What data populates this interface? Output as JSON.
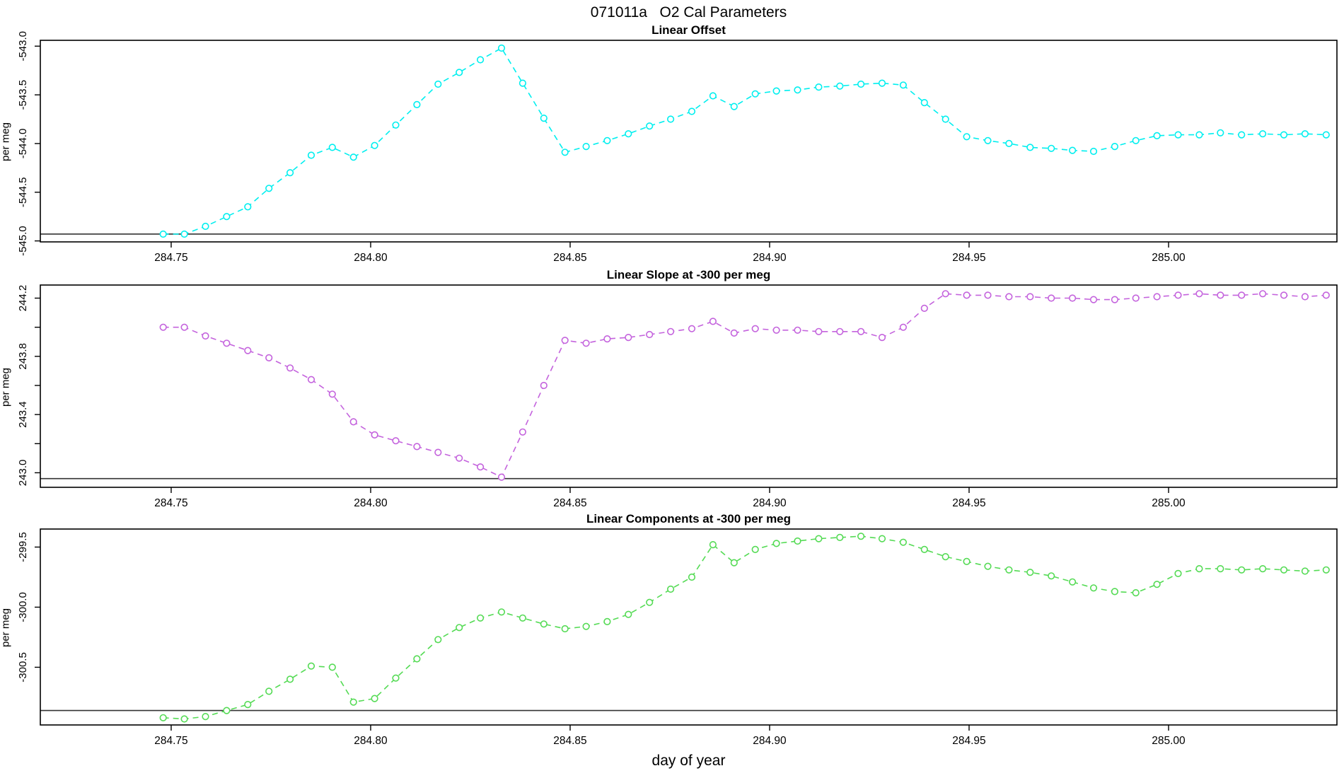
{
  "page": {
    "main_title": "071011a   O2 Cal Parameters"
  },
  "chart_data": {
    "type": "line",
    "x": {
      "label": "day of year",
      "start": 284.748,
      "step": 0.0053,
      "lim": [
        284.7172,
        285.0422
      ],
      "ticks": [
        {
          "v": 284.75,
          "label": "284.75"
        },
        {
          "v": 284.8,
          "label": "284.80"
        },
        {
          "v": 284.85,
          "label": "284.85"
        },
        {
          "v": 284.9,
          "label": "284.90"
        },
        {
          "v": 284.95,
          "label": "284.95"
        },
        {
          "v": 285.0,
          "label": "285.00"
        }
      ]
    },
    "panels": [
      {
        "title": "Linear Offset",
        "ylabel": "per meg",
        "color": "#00EFEF",
        "ref_line": -544.93,
        "ylim": [
          -545.01,
          -542.94
        ],
        "yticks": [
          {
            "v": -543.0,
            "label": "-543.0"
          },
          {
            "v": -543.5,
            "label": "-543.5"
          },
          {
            "v": -544.0,
            "label": "-544.0"
          },
          {
            "v": -544.5,
            "label": "-544.5"
          },
          {
            "v": -545.0,
            "label": "-545.0"
          }
        ],
        "values": [
          -544.93,
          -544.93,
          -544.85,
          -544.75,
          -544.65,
          -544.46,
          -544.3,
          -544.12,
          -544.04,
          -544.14,
          -544.02,
          -543.81,
          -543.6,
          -543.39,
          -543.27,
          -543.14,
          -543.02,
          -543.38,
          -543.74,
          -544.09,
          -544.03,
          -543.97,
          -543.9,
          -543.82,
          -543.75,
          -543.67,
          -543.51,
          -543.62,
          -543.49,
          -543.46,
          -543.45,
          -543.42,
          -543.41,
          -543.39,
          -543.38,
          -543.4,
          -543.58,
          -543.75,
          -543.93,
          -543.97,
          -544.0,
          -544.04,
          -544.05,
          -544.07,
          -544.08,
          -544.03,
          -543.97,
          -543.92,
          -543.91,
          -543.91,
          -543.89,
          -543.91,
          -543.9,
          -543.91,
          -543.9,
          -543.91
        ]
      },
      {
        "title": "Linear Slope at -300 per meg",
        "ylabel": "per meg",
        "color": "#C463DD",
        "ref_line": 242.96,
        "ylim": [
          242.9,
          244.29
        ],
        "yticks": [
          {
            "v": 244.2,
            "label": "244.2"
          },
          {
            "v": 244.0,
            "label": ""
          },
          {
            "v": 243.8,
            "label": "243.8"
          },
          {
            "v": 243.6,
            "label": ""
          },
          {
            "v": 243.4,
            "label": "243.4"
          },
          {
            "v": 243.2,
            "label": ""
          },
          {
            "v": 243.0,
            "label": "243.0"
          }
        ],
        "values": [
          244.0,
          244.0,
          243.94,
          243.89,
          243.84,
          243.79,
          243.72,
          243.64,
          243.54,
          243.35,
          243.26,
          243.22,
          243.18,
          243.14,
          243.1,
          243.04,
          242.97,
          243.28,
          243.6,
          243.91,
          243.89,
          243.92,
          243.93,
          243.95,
          243.97,
          243.99,
          244.04,
          243.96,
          243.99,
          243.98,
          243.98,
          243.97,
          243.97,
          243.97,
          243.93,
          244.0,
          244.13,
          244.23,
          244.22,
          244.22,
          244.21,
          244.21,
          244.2,
          244.2,
          244.19,
          244.19,
          244.2,
          244.21,
          244.22,
          244.23,
          244.22,
          244.22,
          244.23,
          244.22,
          244.21,
          244.22
        ]
      },
      {
        "title": "Linear Components at -300 per meg",
        "ylabel": "per meg",
        "color": "#55DB55",
        "ref_line": -300.86,
        "ylim": [
          -300.98,
          -299.35
        ],
        "yticks": [
          {
            "v": -299.5,
            "label": "-299.5"
          },
          {
            "v": -300.0,
            "label": "-300.0"
          },
          {
            "v": -300.5,
            "label": "-300.5"
          }
        ],
        "values": [
          -300.92,
          -300.93,
          -300.91,
          -300.86,
          -300.81,
          -300.7,
          -300.6,
          -300.49,
          -300.5,
          -300.79,
          -300.76,
          -300.59,
          -300.43,
          -300.27,
          -300.17,
          -300.09,
          -300.04,
          -300.09,
          -300.14,
          -300.18,
          -300.16,
          -300.12,
          -300.06,
          -299.96,
          -299.85,
          -299.75,
          -299.48,
          -299.63,
          -299.52,
          -299.47,
          -299.45,
          -299.43,
          -299.42,
          -299.41,
          -299.43,
          -299.46,
          -299.52,
          -299.58,
          -299.62,
          -299.66,
          -299.69,
          -299.71,
          -299.74,
          -299.79,
          -299.84,
          -299.87,
          -299.88,
          -299.81,
          -299.72,
          -299.68,
          -299.68,
          -299.69,
          -299.68,
          -299.69,
          -299.7,
          -299.69
        ]
      }
    ]
  }
}
